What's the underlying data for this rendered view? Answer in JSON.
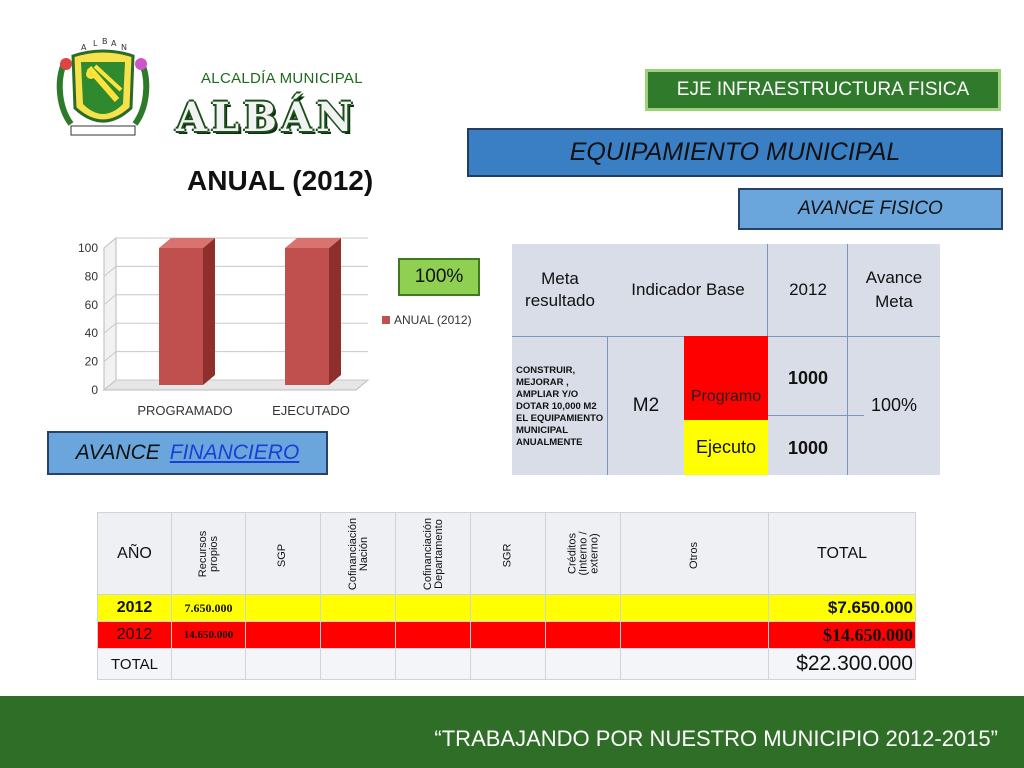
{
  "header": {
    "alcaldia": "ALCALDÍA MUNICIPAL",
    "municipio": "ALBÁN",
    "logo_icon": "municipal-coat-of-arms",
    "logo_letters": [
      "A",
      "L",
      "B",
      "A",
      "N"
    ],
    "eje": "EJE INFRAESTRUCTURA FISICA",
    "equipamiento": "EQUIPAMIENTO MUNICIPAL",
    "avance_fisico": "AVANCE  FISICO"
  },
  "chart_title": "ANUAL (2012)",
  "percent_badge": "100%",
  "avance_financiero": {
    "prefix": "AVANCE",
    "link": "FINANCIERO"
  },
  "chart_data": {
    "type": "bar",
    "categories": [
      "PROGRAMADO",
      "EJECUTADO"
    ],
    "series": [
      {
        "name": "ANUAL (2012)",
        "values": [
          100,
          100
        ],
        "color": "#c0504d"
      }
    ],
    "ylim": [
      0,
      100
    ],
    "yticks": [
      0,
      20,
      40,
      60,
      80,
      100
    ],
    "legend_position": "right",
    "grid": true,
    "three_d": true
  },
  "indicator_table": {
    "headers": [
      "Meta resultado",
      "Indicador Base",
      "2012",
      "Avance Meta"
    ],
    "meta_text": "CONSTRUIR, MEJORAR , AMPLIAR Y/O DOTAR 10,000 M2 EL EQUIPAMIENTO MUNICIPAL ANUALMENTE",
    "unit": "M2",
    "programo_label": "Programo",
    "ejecuto_label": "Ejecuto",
    "programo_value": "1000",
    "ejecuto_value": "1000",
    "avance": "100%",
    "colors": {
      "programo": "#ff0000",
      "ejecuto": "#ffff00"
    }
  },
  "financial_table": {
    "headers": [
      "AÑO",
      "Recursos propios",
      "SGP",
      "Cofinanciación Nación",
      "Cofinanciación Departamento",
      "SGR",
      "Créditos (Interno / externo)",
      "Otros",
      "TOTAL"
    ],
    "rows": [
      {
        "year": "2012",
        "recursos": "7.650.000",
        "total": "$7.650.000"
      },
      {
        "year": "2012",
        "recursos": "14.650.000",
        "total": "$14.650.000"
      }
    ],
    "total_label": "TOTAL",
    "grand_total": "$22.300.000",
    "row_colors": [
      "#ffff00",
      "#ff0000"
    ]
  },
  "footer": {
    "slogan": "“TRABAJANDO POR NUESTRO MUNICIPIO 2012-2015”",
    "color": "#2e6e26"
  }
}
